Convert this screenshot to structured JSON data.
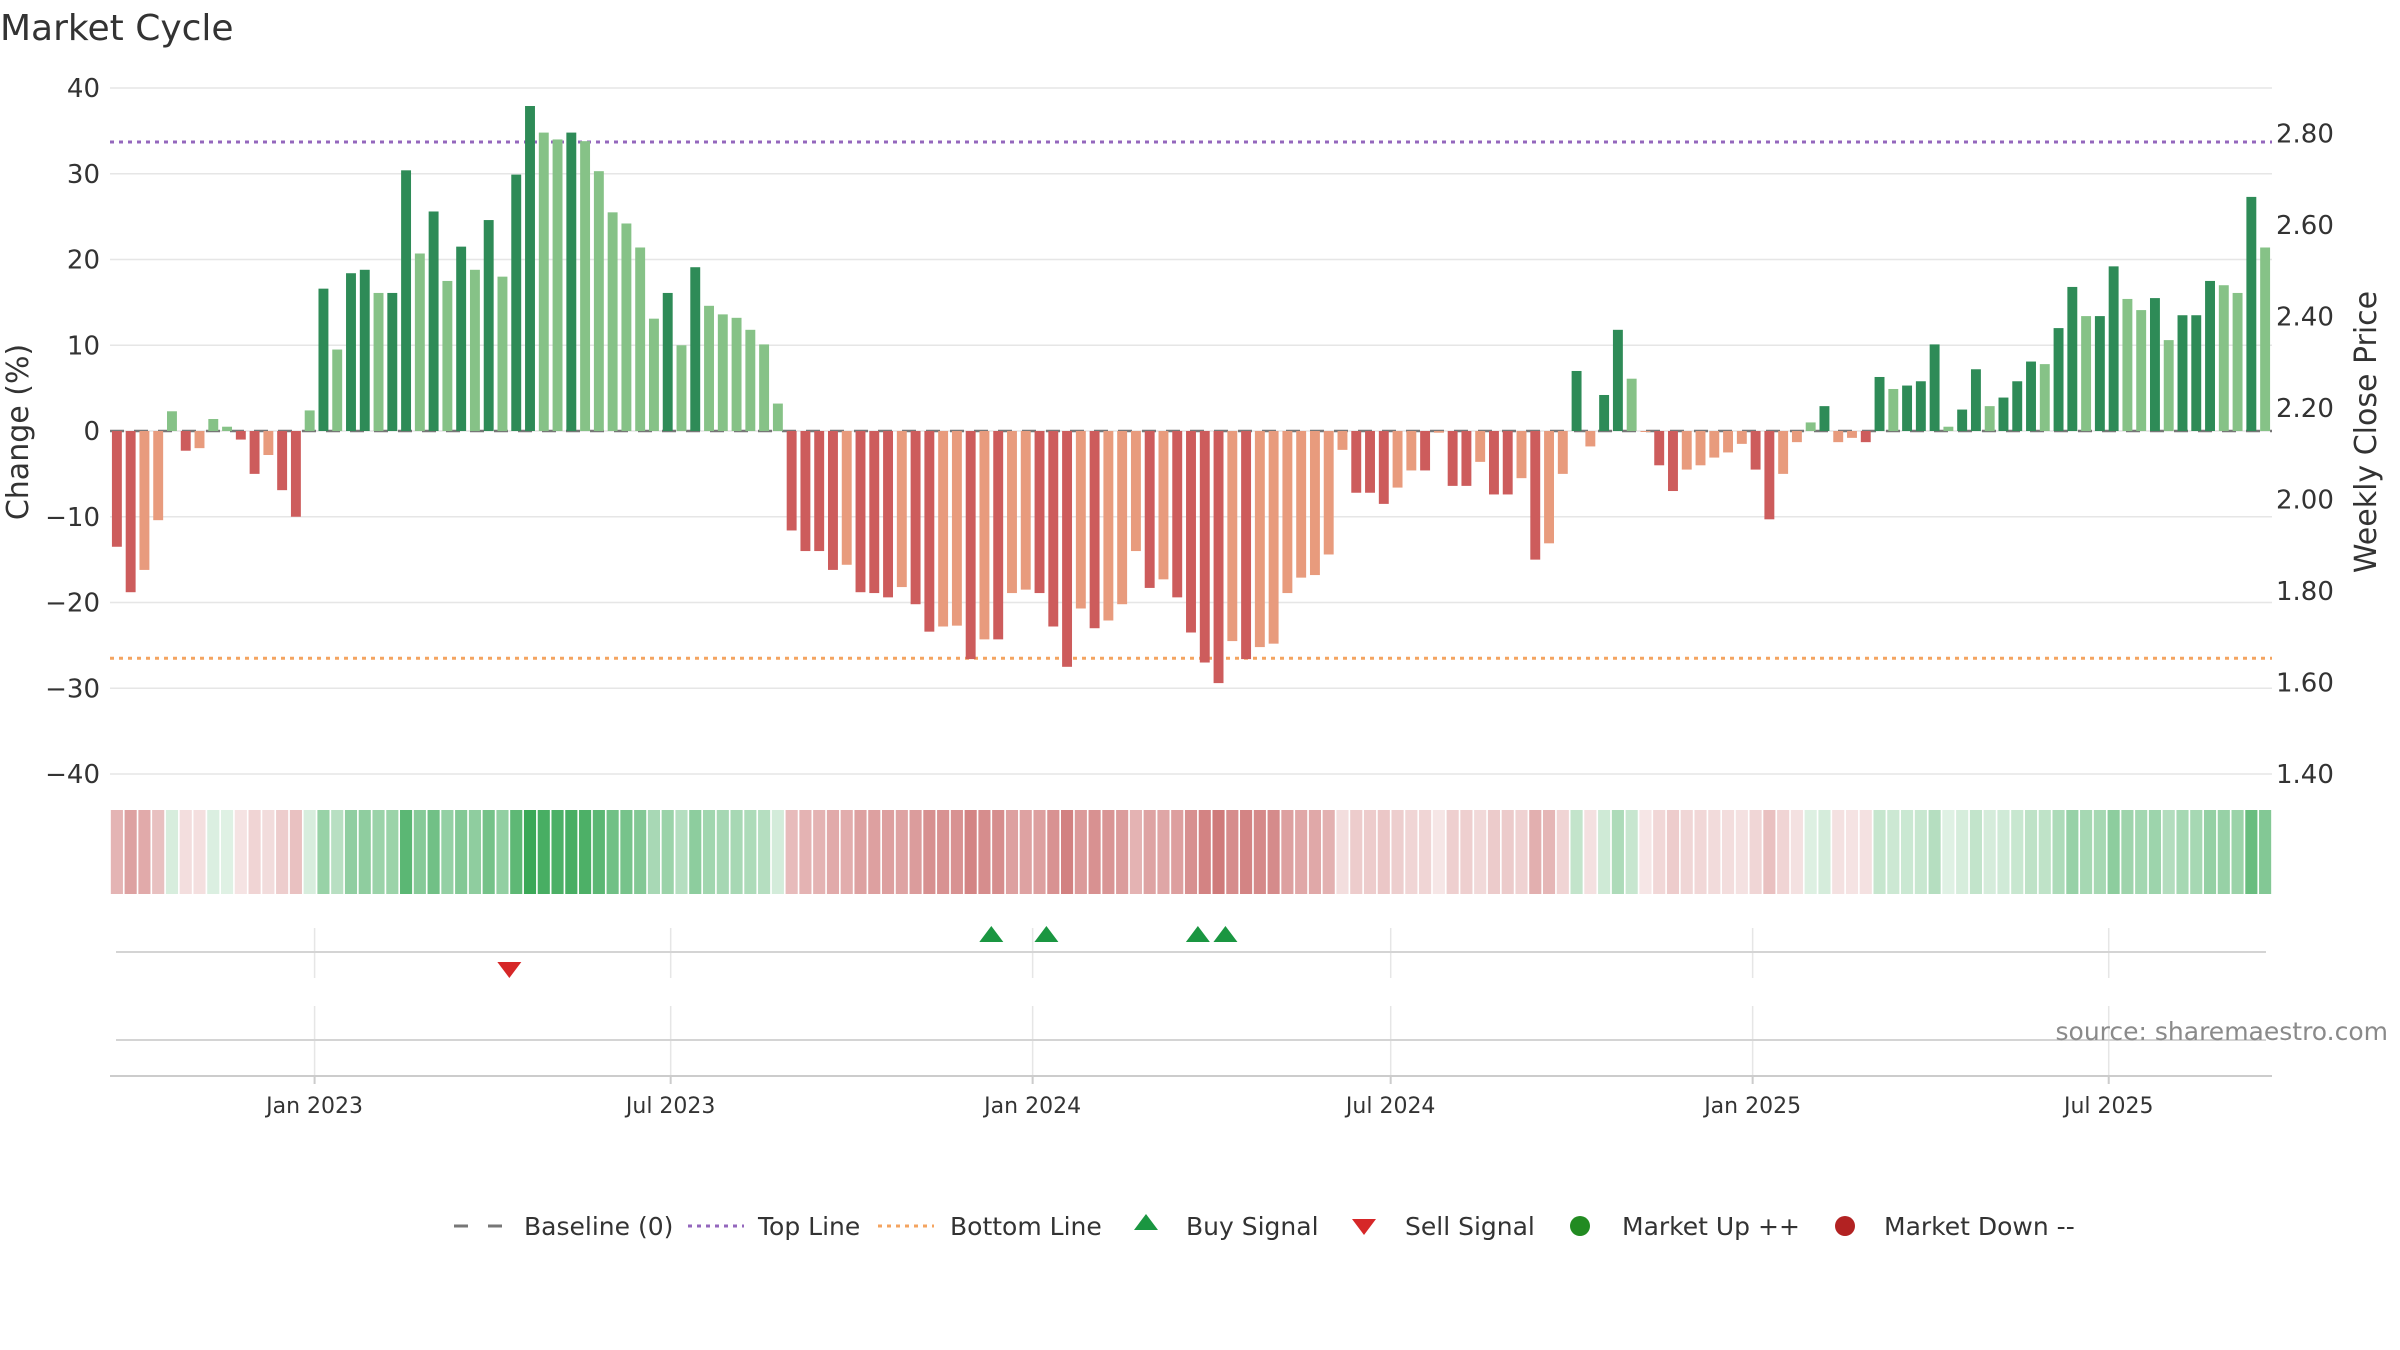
{
  "chart_data": {
    "type": "bar",
    "title": "Market Cycle",
    "ylabel": "Change (%)",
    "y2label": "Weekly Close Price",
    "ylim": [
      -40,
      40
    ],
    "y2lim": [
      1.4,
      2.9
    ],
    "yticks": [
      "40",
      "30",
      "20",
      "10",
      "0",
      "−10",
      "−20",
      "−30",
      "−40"
    ],
    "yticks_values": [
      40,
      30,
      20,
      10,
      0,
      -10,
      -20,
      -30,
      -40
    ],
    "y2ticks": [
      "2.80",
      "2.60",
      "2.40",
      "2.20",
      "2.00",
      "1.80",
      "1.60",
      "1.40"
    ],
    "y2ticks_values": [
      2.8,
      2.6,
      2.4,
      2.2,
      2.0,
      1.8,
      1.6,
      1.4
    ],
    "x_start": "2022-09-19",
    "x_end": "2025-09-22",
    "xticks": [
      {
        "date": "2023-01-01",
        "label": "Jan 2023"
      },
      {
        "date": "2023-07-01",
        "label": "Jul 2023"
      },
      {
        "date": "2024-01-01",
        "label": "Jan 2024"
      },
      {
        "date": "2024-07-01",
        "label": "Jul 2024"
      },
      {
        "date": "2025-01-01",
        "label": "Jan 2025"
      },
      {
        "date": "2025-07-01",
        "label": "Jul 2025"
      }
    ],
    "top_line": 33.7,
    "bottom_line": -26.5,
    "values": [
      -13.5,
      -18.8,
      -16.2,
      -10.4,
      2.3,
      -2.3,
      -2.0,
      1.4,
      0.5,
      -1.0,
      -5.0,
      -2.8,
      -6.9,
      -10.0,
      2.4,
      16.6,
      9.5,
      18.4,
      18.8,
      16.1,
      16.1,
      30.4,
      20.7,
      25.6,
      17.5,
      21.5,
      18.8,
      24.6,
      18.0,
      29.9,
      37.9,
      34.8,
      34.0,
      34.8,
      33.8,
      30.3,
      25.5,
      24.2,
      21.4,
      13.1,
      16.1,
      10.0,
      19.1,
      14.6,
      13.6,
      13.2,
      11.8,
      10.1,
      3.2,
      -11.6,
      -14.0,
      -14.0,
      -16.2,
      -15.6,
      -18.8,
      -18.9,
      -19.4,
      -18.2,
      -20.2,
      -23.4,
      -22.8,
      -22.7,
      -26.6,
      -24.3,
      -24.3,
      -18.9,
      -18.5,
      -18.9,
      -22.8,
      -27.5,
      -20.7,
      -23.0,
      -22.1,
      -20.2,
      -14.0,
      -18.3,
      -17.3,
      -19.4,
      -23.5,
      -27.0,
      -29.4,
      -24.5,
      -26.6,
      -25.2,
      -24.8,
      -18.9,
      -17.1,
      -16.8,
      -14.4,
      -2.2,
      -7.2,
      -7.2,
      -8.5,
      -6.6,
      -4.6,
      -4.6,
      -0.2,
      -6.4,
      -6.4,
      -3.6,
      -7.4,
      -7.4,
      -5.5,
      -15.0,
      -13.1,
      -5.0,
      7.0,
      -1.8,
      4.2,
      11.8,
      6.1,
      -0.1,
      -4.0,
      -7.0,
      -4.5,
      -4.0,
      -3.1,
      -2.5,
      -1.5,
      -4.5,
      -10.3,
      -5.0,
      -1.3,
      1.0,
      2.9,
      -1.3,
      -0.8,
      -1.3,
      6.3,
      4.9,
      5.3,
      5.8,
      10.1,
      0.5,
      2.5,
      7.2,
      2.9,
      3.9,
      5.8,
      8.1,
      7.8,
      12.0,
      16.8,
      13.4,
      13.4,
      19.2,
      15.4,
      14.1,
      15.5,
      10.6,
      13.5,
      13.5,
      17.5,
      17.0,
      16.1,
      27.3,
      21.4
    ],
    "buy_signal_dates": [
      "2023-12-11",
      "2024-01-08",
      "2024-03-25",
      "2024-04-08"
    ],
    "sell_signal_dates": [
      "2023-04-10"
    ],
    "legend": [
      "Baseline (0)",
      "Top Line",
      "Bottom Line",
      "Buy Signal",
      "Sell Signal",
      "Market Up ++",
      "Market Down --"
    ],
    "grid": true,
    "legend_position": "bottom-center"
  },
  "source": "source: sharemaestro.com",
  "colors": {
    "up_strong": "#2e8b57",
    "up_weak": "#86c287",
    "down_strong": "#cd5c5c",
    "down_weak": "#e89b7d",
    "top_line": "#9467bd",
    "bottom_line": "#f4a460",
    "buy": "#1a9641",
    "sell": "#d62728",
    "market_up": "#228b22",
    "market_down": "#b22222",
    "baseline": "#777777"
  }
}
